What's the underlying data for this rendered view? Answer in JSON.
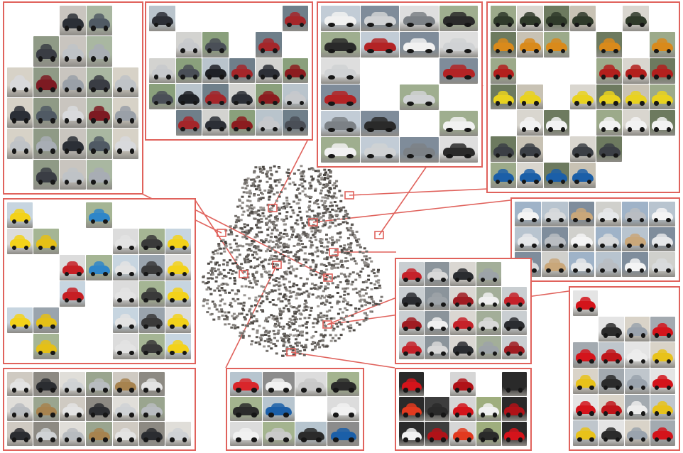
{
  "figure": {
    "description_free": true,
    "frame_color": "#e0625c",
    "point_color": "#6e6e6e"
  },
  "clusters": [
    {
      "id": "sedans-silver-dark",
      "body_colors": [
        "#bfc3c7",
        "#3a3d44",
        "#9aa0a8",
        "#7d1a22",
        "#d8d9dc",
        "#505a64",
        "#2b2f36",
        "#a8adb4"
      ],
      "backgrounds": [
        "#d7d2c7",
        "#a9b7a1",
        "#c9c5bf",
        "#8f9a86"
      ]
    },
    {
      "id": "suvs-dark-red",
      "body_colors": [
        "#2c2f36",
        "#8c1c1f",
        "#c7c9cc",
        "#4a4f57",
        "#1e2126",
        "#a5262a"
      ],
      "backgrounds": [
        "#b9c4cc",
        "#8aa07c",
        "#d3d3d0",
        "#6f7f8a"
      ]
    },
    {
      "id": "pickups-white-black",
      "body_colors": [
        "#f1f1f1",
        "#2a2a2a",
        "#d0d2d4",
        "#b32325",
        "#7c8186"
      ],
      "backgrounds": [
        "#c2ccd6",
        "#9fae8f",
        "#dedede",
        "#7f8c9a"
      ]
    },
    {
      "id": "offroad-jeeps",
      "body_colors": [
        "#2f3a2a",
        "#d98a1b",
        "#b3201d",
        "#e9d21f",
        "#f2f2f2",
        "#3b3f45",
        "#1b5fa8"
      ],
      "backgrounds": [
        "#9caa8a",
        "#c8c2b4",
        "#6d7a5f",
        "#d9d6cf"
      ]
    },
    {
      "id": "yellow-compacts",
      "body_colors": [
        "#f3d21a",
        "#e5c016",
        "#c61f24",
        "#2f86c9",
        "#e3e3e3",
        "#3a3a3a"
      ],
      "backgrounds": [
        "#c7d5e0",
        "#a5b594",
        "#dcdcdc",
        "#9aa4ad"
      ]
    },
    {
      "id": "white-vans",
      "body_colors": [
        "#f4f4f4",
        "#e6e8ea",
        "#d8dadc",
        "#b9bdc2",
        "#c9a77a"
      ],
      "backgrounds": [
        "#9fb3c8",
        "#d0d0cc",
        "#7f8d9c",
        "#b8c4cf"
      ]
    },
    {
      "id": "red-hatchbacks",
      "body_colors": [
        "#c5222a",
        "#d8d8d8",
        "#2a2c30",
        "#9da3a8",
        "#a01c22",
        "#f0f0f0"
      ],
      "backgrounds": [
        "#c9ced1",
        "#a3ae99",
        "#dad7d2",
        "#8b949b"
      ]
    },
    {
      "id": "silver-luxury",
      "body_colors": [
        "#e3e3e3",
        "#b8bcc0",
        "#2b2d31",
        "#a7834f",
        "#cfd2d5"
      ],
      "backgrounds": [
        "#cfcac2",
        "#9aa58f",
        "#e0ded9",
        "#8d8a83"
      ]
    },
    {
      "id": "microcars",
      "body_colors": [
        "#d9262b",
        "#2b2b2b",
        "#f1f1f1",
        "#1b5fa8",
        "#c9c9c9"
      ],
      "backgrounds": [
        "#b7c5cf",
        "#a4b48f",
        "#dcdcdc",
        "#8c8c8c"
      ]
    },
    {
      "id": "red-sports",
      "body_colors": [
        "#d4141b",
        "#e23a1f",
        "#f1f1f1",
        "#2a2a2a",
        "#b01218"
      ],
      "backgrounds": [
        "#2a2a2a",
        "#9fae7e",
        "#d6d6d6",
        "#3d3d3d"
      ]
    },
    {
      "id": "red-supercars",
      "body_colors": [
        "#d4141b",
        "#c0151a",
        "#ededed",
        "#e8c21a",
        "#2b2b2b",
        "#9aa3ad"
      ],
      "backgrounds": [
        "#e4e4e4",
        "#bfc6cc",
        "#a3aab0",
        "#d9d3c8"
      ]
    }
  ]
}
